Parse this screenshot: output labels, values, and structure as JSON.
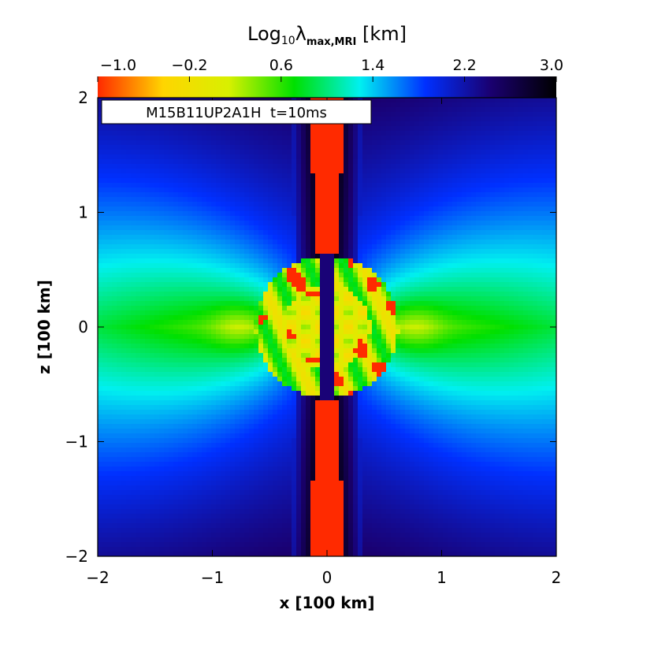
{
  "chart_data": {
    "type": "heatmap",
    "title_parts": {
      "base": "Log",
      "sub": "10",
      "symbol": "λ",
      "sub2": "max,MRI",
      "unit": "[km]"
    },
    "colorbar": {
      "ticks": [
        "−1.0",
        "−0.2",
        "0.6",
        "1.4",
        "2.2",
        "3.0"
      ],
      "range": [
        -1.0,
        3.0
      ],
      "colormap": [
        "#ff2a00",
        "#ffd500",
        "#d8f000",
        "#00e000",
        "#00f0f0",
        "#0030ff",
        "#1a0070",
        "#000000"
      ]
    },
    "label": "M15B11UP2A1H  t=10ms",
    "xlabel": "x [100 km]",
    "ylabel": "z [100 km]",
    "xlim": [
      -2,
      2
    ],
    "ylim": [
      -2,
      2
    ],
    "xticks": [
      "−2",
      "−1",
      "0",
      "1",
      "2"
    ],
    "yticks": [
      "−2",
      "−1",
      "0",
      "1",
      "2"
    ],
    "field_notes": {
      "polar_jet_value": -1.0,
      "equatorial_value": 0.4,
      "diagonal_value": 1.2,
      "near_axis_value": 2.8,
      "core_values": [
        -1.0,
        1.0
      ]
    }
  }
}
